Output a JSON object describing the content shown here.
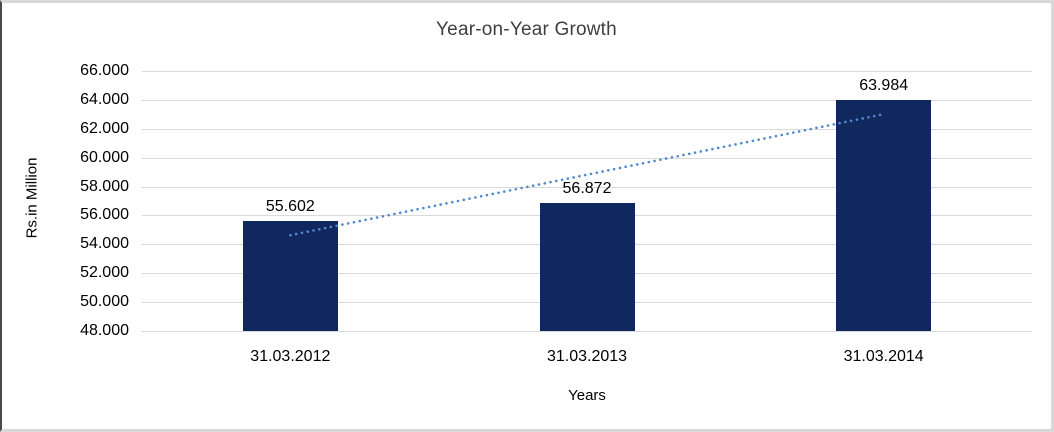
{
  "chart_data": {
    "type": "bar",
    "title": "Year-on-Year Growth",
    "xlabel": "Years",
    "ylabel": "Rs.in Million",
    "categories": [
      "31.03.2012",
      "31.03.2013",
      "31.03.2014"
    ],
    "values": [
      55.602,
      56.872,
      63.984
    ],
    "value_labels": [
      "55.602",
      "56.872",
      "63.984"
    ],
    "ylim": [
      48,
      66
    ],
    "ytick_step": 2,
    "ytick_labels": [
      "66.000",
      "64.000",
      "62.000",
      "60.000",
      "58.000",
      "56.000",
      "54.000",
      "52.000",
      "50.000",
      "48.000"
    ],
    "grid": "horizontal-only",
    "legend": "none",
    "colors": {
      "bar": "#11285e",
      "trendline": "#5089ce",
      "gridline": "#d9d9d9",
      "text": "#000000",
      "title_text": "#3f3f3f",
      "frame_border": "#d9d9d9"
    },
    "trendline": {
      "style": "dotted",
      "start_value": 54.63,
      "end_value": 63.01
    }
  }
}
